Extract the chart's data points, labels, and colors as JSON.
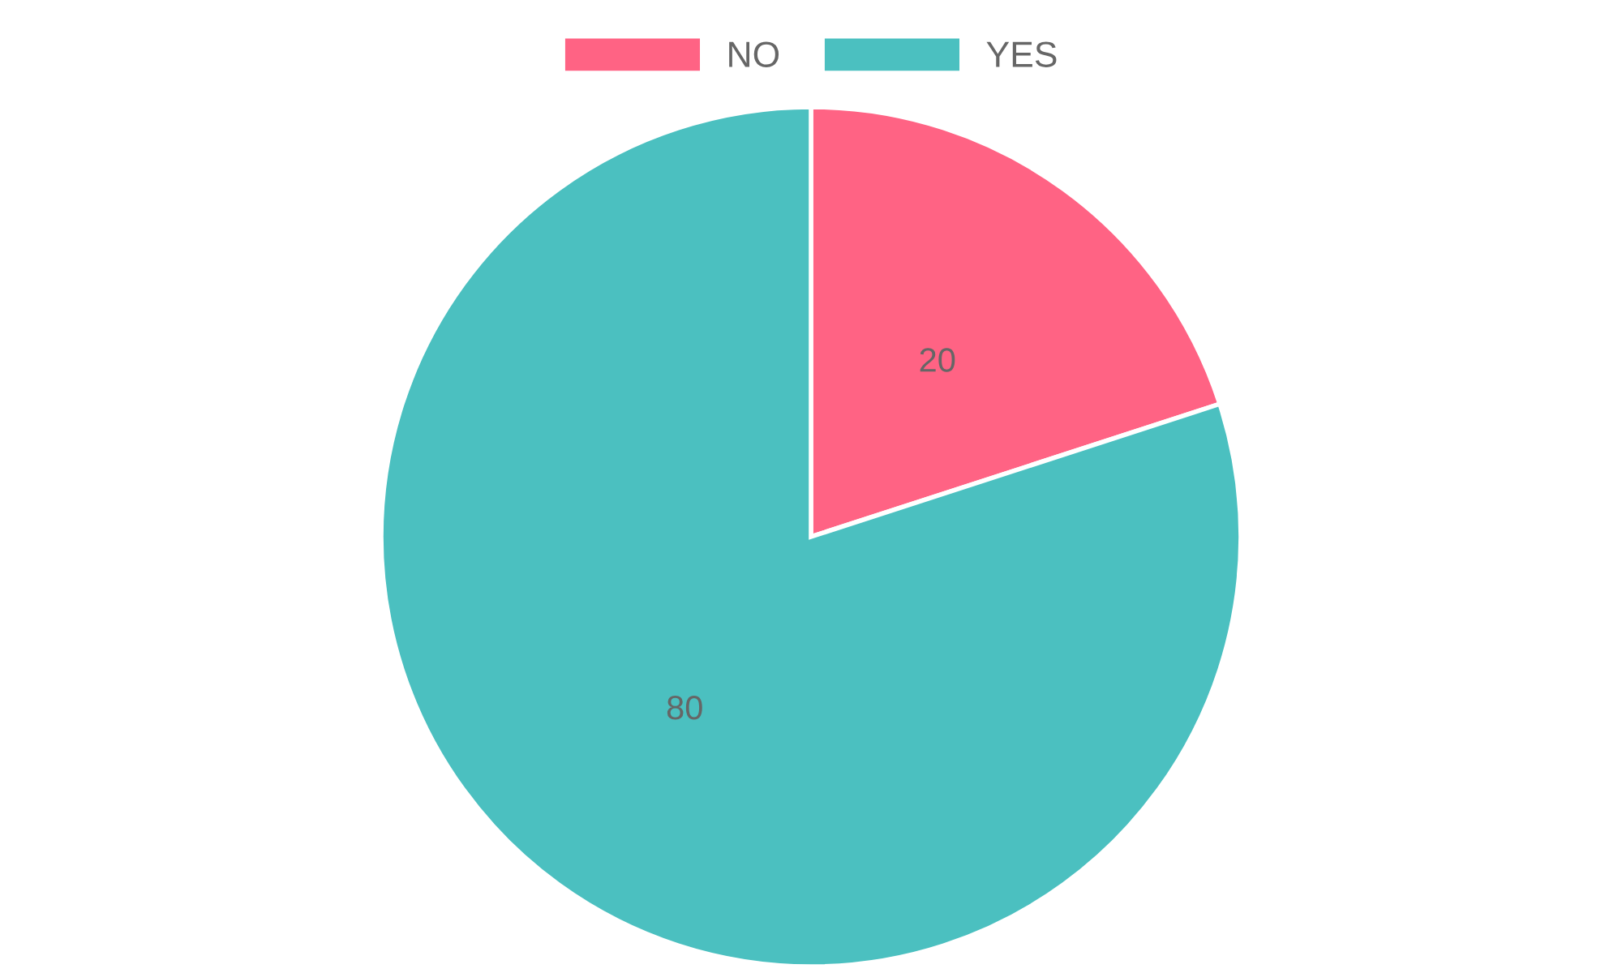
{
  "chart_data": {
    "type": "pie",
    "categories": [
      "NO",
      "YES"
    ],
    "values": [
      20,
      80
    ],
    "colors": [
      "#ff6384",
      "#4bc0c0"
    ],
    "data_labels": true,
    "legend": "top"
  }
}
